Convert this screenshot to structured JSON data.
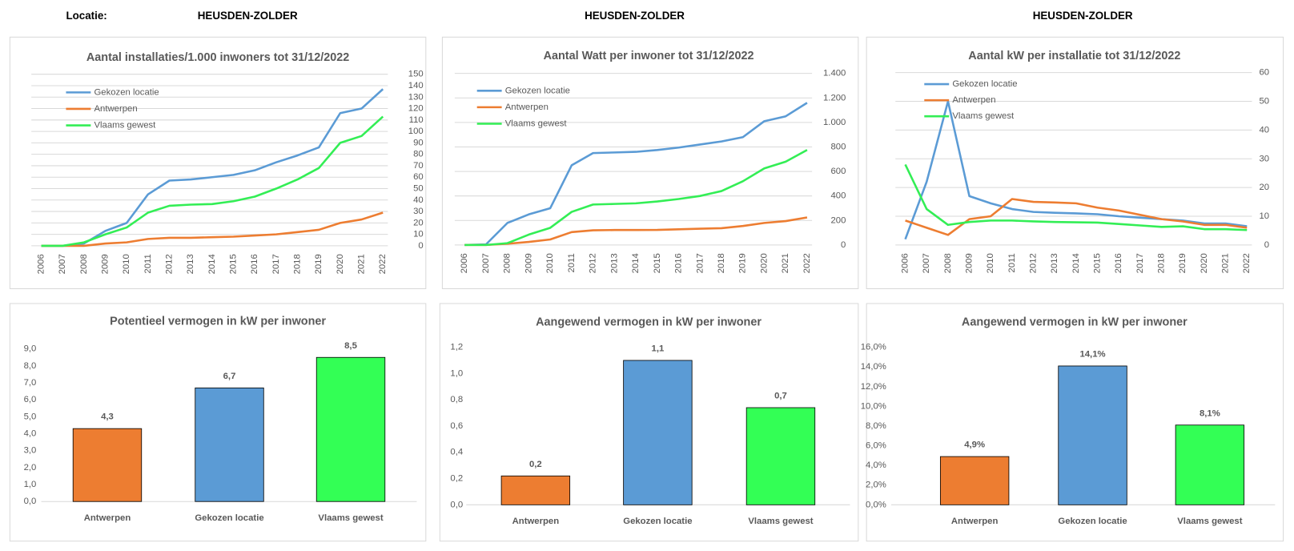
{
  "header": {
    "label": "Locatie:",
    "location": "HEUSDEN-ZOLDER",
    "location_2": "HEUSDEN-ZOLDER",
    "location_3": "HEUSDEN-ZOLDER"
  },
  "chart_data": [
    {
      "type": "line",
      "title": "Aantal installaties/1.000  inwoners tot 31/12/2022",
      "categories": [
        "2006",
        "2007",
        "2008",
        "2009",
        "2010",
        "2011",
        "2012",
        "2013",
        "2014",
        "2015",
        "2016",
        "2017",
        "2018",
        "2019",
        "2020",
        "2021",
        "2022"
      ],
      "series": [
        {
          "name": "Gekozen locatie",
          "color": "#5b9bd5",
          "values": [
            0,
            0,
            2,
            13,
            20,
            45,
            57,
            58,
            60,
            62,
            66,
            73,
            79,
            86,
            116,
            120,
            137
          ]
        },
        {
          "name": "Antwerpen",
          "color": "#ed7d31",
          "values": [
            0,
            0,
            0,
            2,
            3,
            6,
            7,
            7,
            7.5,
            8,
            9,
            10,
            12,
            14,
            20,
            23,
            29
          ]
        },
        {
          "name": "Vlaams gewest",
          "color": "#33ee55",
          "values": [
            0,
            0,
            3,
            10,
            16,
            29,
            35,
            36,
            36.5,
            39,
            43,
            50,
            58,
            68,
            90,
            96,
            113
          ]
        }
      ],
      "ylim": [
        0,
        150
      ],
      "yticks": [
        0,
        10,
        20,
        30,
        40,
        50,
        60,
        70,
        80,
        90,
        100,
        110,
        120,
        130,
        140,
        150
      ],
      "grid": true
    },
    {
      "type": "line",
      "title": "Aantal Watt per inwoner tot 31/12/2022",
      "categories": [
        "2006",
        "2007",
        "2008",
        "2009",
        "2010",
        "2011",
        "2012",
        "2013",
        "2014",
        "2015",
        "2016",
        "2017",
        "2018",
        "2019",
        "2020",
        "2021",
        "2022"
      ],
      "series": [
        {
          "name": "Gekozen locatie",
          "color": "#5b9bd5",
          "values": [
            0,
            5,
            180,
            250,
            300,
            650,
            750,
            755,
            760,
            775,
            795,
            820,
            845,
            880,
            1010,
            1050,
            1160
          ]
        },
        {
          "name": "Antwerpen",
          "color": "#ed7d31",
          "values": [
            0,
            0,
            10,
            25,
            45,
            105,
            120,
            122,
            122,
            123,
            128,
            133,
            137,
            155,
            180,
            195,
            225
          ]
        },
        {
          "name": "Vlaams gewest",
          "color": "#33ee55",
          "values": [
            0,
            0,
            15,
            85,
            140,
            270,
            330,
            335,
            340,
            355,
            375,
            400,
            440,
            520,
            625,
            680,
            775
          ]
        }
      ],
      "ylim": [
        0,
        1400
      ],
      "yticks": [
        0,
        200,
        400,
        600,
        800,
        {
          "value": 1000,
          "label": "1.000"
        },
        {
          "value": 1200,
          "label": "1.200"
        },
        {
          "value": 1400,
          "label": "1.400"
        }
      ],
      "grid": true
    },
    {
      "type": "line",
      "title": "Aantal kW per installatie  tot 31/12/2022",
      "categories": [
        "2006",
        "2007",
        "2008",
        "2009",
        "2010",
        "2011",
        "2012",
        "2013",
        "2014",
        "2015",
        "2016",
        "2017",
        "2018",
        "2019",
        "2020",
        "2021",
        "2022"
      ],
      "series": [
        {
          "name": "Gekozen locatie",
          "color": "#5b9bd5",
          "values": [
            2,
            22,
            50,
            17,
            14.5,
            12.5,
            11.5,
            11.2,
            11,
            10.7,
            10,
            9.5,
            9,
            8.5,
            7.5,
            7.5,
            6.5
          ]
        },
        {
          "name": "Antwerpen",
          "color": "#ed7d31",
          "values": [
            8.5,
            6,
            3.5,
            9,
            10,
            16,
            15,
            14.8,
            14.5,
            13,
            12,
            10.5,
            9,
            8.2,
            7,
            7,
            6
          ]
        },
        {
          "name": "Vlaams gewest",
          "color": "#33ee55",
          "values": [
            28,
            12.5,
            7,
            8,
            8.5,
            8.5,
            8.2,
            8,
            7.9,
            7.8,
            7.3,
            6.8,
            6.3,
            6.5,
            5.5,
            5.5,
            5.2
          ]
        }
      ],
      "ylim": [
        0,
        60
      ],
      "yticks": [
        0,
        10,
        20,
        30,
        40,
        50,
        60
      ],
      "grid": true
    },
    {
      "type": "bar",
      "title": "Potentieel vermogen in kW per inwoner",
      "categories": [
        "Antwerpen",
        "Gekozen locatie",
        "Vlaams gewest"
      ],
      "colors": [
        "#ed7d31",
        "#5b9bd5",
        "#33ff55"
      ],
      "values": [
        4.3,
        6.7,
        8.5
      ],
      "value_labels": [
        "4,3",
        "6,7",
        "8,5"
      ],
      "ylim": [
        0,
        9
      ],
      "yticks": [
        {
          "value": 0,
          "label": "0,0"
        },
        {
          "value": 1,
          "label": "1,0"
        },
        {
          "value": 2,
          "label": "2,0"
        },
        {
          "value": 3,
          "label": "3,0"
        },
        {
          "value": 4,
          "label": "4,0"
        },
        {
          "value": 5,
          "label": "5,0"
        },
        {
          "value": 6,
          "label": "6,0"
        },
        {
          "value": 7,
          "label": "7,0"
        },
        {
          "value": 8,
          "label": "8,0"
        },
        {
          "value": 9,
          "label": "9,0"
        }
      ]
    },
    {
      "type": "bar",
      "title": "Aangewend vermogen in kW per inwoner",
      "categories": [
        "Antwerpen",
        "Gekozen locatie",
        "Vlaams gewest"
      ],
      "colors": [
        "#ed7d31",
        "#5b9bd5",
        "#33ff55"
      ],
      "values": [
        0.22,
        1.1,
        0.74
      ],
      "value_labels": [
        "0,2",
        "1,1",
        "0,7"
      ],
      "ylim": [
        0,
        1.2
      ],
      "yticks": [
        {
          "value": 0,
          "label": "0,0"
        },
        {
          "value": 0.2,
          "label": "0,2"
        },
        {
          "value": 0.4,
          "label": "0,4"
        },
        {
          "value": 0.6,
          "label": "0,6"
        },
        {
          "value": 0.8,
          "label": "0,8"
        },
        {
          "value": 1,
          "label": "1,0"
        },
        {
          "value": 1.2,
          "label": "1,2"
        }
      ]
    },
    {
      "type": "bar",
      "title": "Aangewend vermogen in kW per inwoner",
      "categories": [
        "Antwerpen",
        "Gekozen locatie",
        "Vlaams gewest"
      ],
      "colors": [
        "#ed7d31",
        "#5b9bd5",
        "#33ff55"
      ],
      "values": [
        4.9,
        14.1,
        8.1
      ],
      "value_labels": [
        "4,9%",
        "14,1%",
        "8,1%"
      ],
      "ylim": [
        0,
        16
      ],
      "yticks": [
        {
          "value": 0,
          "label": "0,0%"
        },
        {
          "value": 2,
          "label": "2,0%"
        },
        {
          "value": 4,
          "label": "4,0%"
        },
        {
          "value": 6,
          "label": "6,0%"
        },
        {
          "value": 8,
          "label": "8,0%"
        },
        {
          "value": 10,
          "label": "10,0%"
        },
        {
          "value": 12,
          "label": "12,0%"
        },
        {
          "value": 14,
          "label": "14,0%"
        },
        {
          "value": 16,
          "label": "16,0%"
        }
      ]
    }
  ]
}
